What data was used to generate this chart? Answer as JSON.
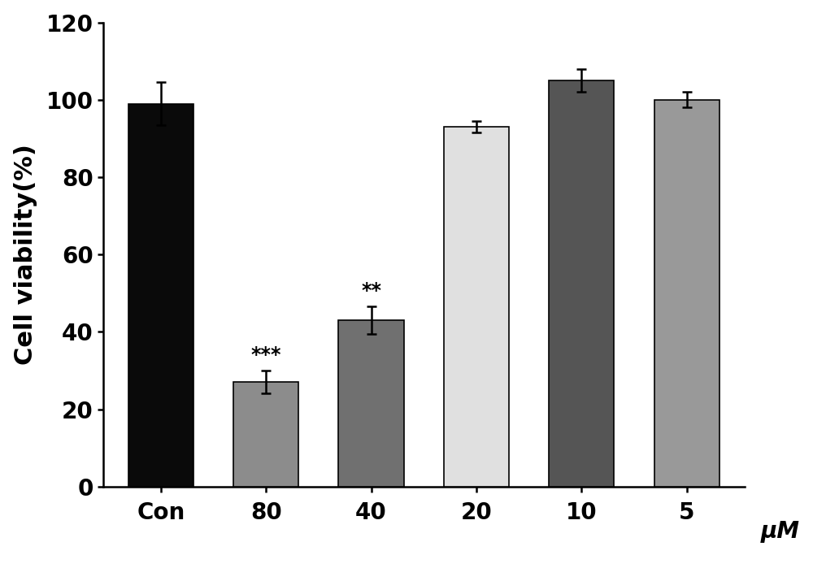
{
  "categories": [
    "Con",
    "80",
    "40",
    "20",
    "10",
    "5"
  ],
  "values": [
    99.0,
    27.0,
    43.0,
    93.0,
    105.0,
    100.0
  ],
  "errors": [
    5.5,
    3.0,
    3.5,
    1.5,
    3.0,
    2.0
  ],
  "bar_colors": [
    "#0a0a0a",
    "#8c8c8c",
    "#707070",
    "#e0e0e0",
    "#555555",
    "#999999"
  ],
  "bar_edge_colors": [
    "#000000",
    "#000000",
    "#000000",
    "#000000",
    "#000000",
    "#000000"
  ],
  "significance": [
    "",
    "***",
    "**",
    "",
    "",
    ""
  ],
  "ylabel": "Cell viability(%)",
  "xlabel": "μM",
  "ylim": [
    0,
    120
  ],
  "yticks": [
    0,
    20,
    40,
    60,
    80,
    100,
    120
  ],
  "bar_width": 0.62,
  "ylabel_fontsize": 22,
  "xtick_fontsize": 20,
  "ytick_fontsize": 20,
  "sig_fontsize": 17,
  "xlabel_fontsize": 20,
  "figsize": [
    10.0,
    6.99
  ],
  "dpi": 100,
  "spine_linewidth": 1.8,
  "capsize": 4,
  "error_linewidth": 1.8,
  "background_color": "#ffffff"
}
